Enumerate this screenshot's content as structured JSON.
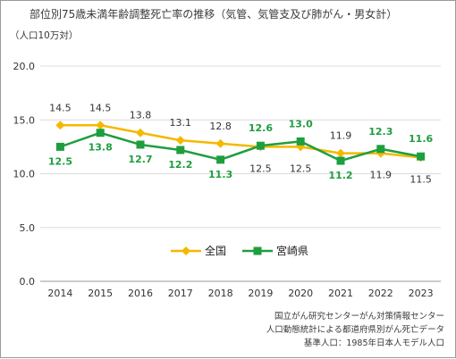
{
  "chart_data": {
    "type": "line",
    "title": "部位別75歳未満年齢調整死亡率の推移（気管、気管支及び肺がん・男女計）",
    "ylabel": "（人口10万対）",
    "xlabel": "",
    "x": [
      2014,
      2015,
      2016,
      2017,
      2018,
      2019,
      2020,
      2021,
      2022,
      2023
    ],
    "x_labels": [
      "2014",
      "2015",
      "2016",
      "2017",
      "2018",
      "2019",
      "2020",
      "2021",
      "2022",
      "2023"
    ],
    "ylim": [
      0,
      20
    ],
    "yticks": [
      0,
      5,
      10,
      15,
      20
    ],
    "ytick_labels": [
      "0.0",
      "5.0",
      "10.0",
      "15.0",
      "20.0"
    ],
    "grid": "horizontal",
    "legend": "center",
    "series": [
      {
        "name": "全国",
        "color": "#f5b800",
        "marker": "diamond",
        "values": [
          14.5,
          14.5,
          13.8,
          13.1,
          12.8,
          12.5,
          12.5,
          11.9,
          11.9,
          11.5
        ],
        "labels": [
          "14.5",
          "14.5",
          "13.8",
          "13.1",
          "12.8",
          "12.5",
          "12.5",
          "11.9",
          "11.9",
          "11.5"
        ]
      },
      {
        "name": "宮崎県",
        "color": "#1e9e3e",
        "marker": "square",
        "values": [
          12.5,
          13.8,
          12.7,
          12.2,
          11.3,
          12.6,
          13.0,
          11.2,
          12.3,
          11.6
        ],
        "labels": [
          "12.5",
          "13.8",
          "12.7",
          "12.2",
          "11.3",
          "12.6",
          "13.0",
          "11.2",
          "12.3",
          "11.6"
        ]
      }
    ]
  },
  "source_notes": [
    "国立がん研究センターがん対策情報センター",
    "人口動態統計による都道府県別がん死亡データ",
    "基準人口：1985年日本人モデル人口"
  ]
}
